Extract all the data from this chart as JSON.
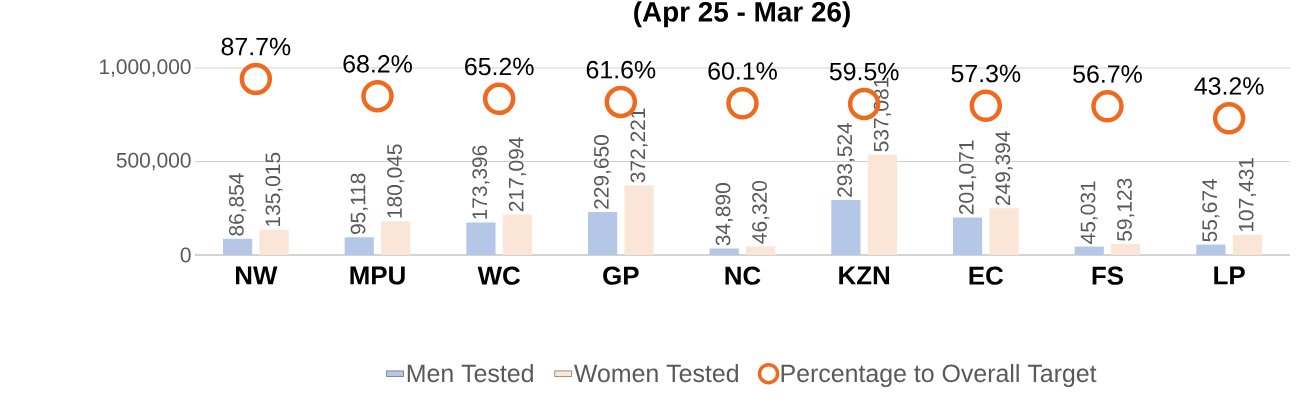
{
  "chart_data": {
    "type": "bar",
    "title": "(Apr 25 - Mar 26)",
    "categories": [
      "NW",
      "MPU",
      "WC",
      "GP",
      "NC",
      "KZN",
      "EC",
      "FS",
      "LP"
    ],
    "series": [
      {
        "name": "Men Tested",
        "color": "#b4c7e7",
        "values": [
          86854,
          95118,
          173396,
          229650,
          34890,
          293524,
          201071,
          45031,
          55674
        ],
        "value_labels": [
          "86,854",
          "95,118",
          "173,396",
          "229,650",
          "34,890",
          "293,524",
          "201,071",
          "45,031",
          "55,674"
        ]
      },
      {
        "name": "Women Tested",
        "color": "#fbe5d6",
        "values": [
          135015,
          180045,
          217094,
          372221,
          46320,
          537081,
          249394,
          59123,
          107431
        ],
        "value_labels": [
          "135,015",
          "180,045",
          "217,094",
          "372,221",
          "46,320",
          "537,081",
          "249,394",
          "59,123",
          "107,431"
        ]
      },
      {
        "name": "Percentage to Overall Target",
        "type": "scatter",
        "axis": "y2",
        "marker": "circle",
        "color": "#ef6a1f",
        "values": [
          87.7,
          68.2,
          65.2,
          61.6,
          60.1,
          59.5,
          57.3,
          56.7,
          43.2
        ],
        "value_labels": [
          "87.7%",
          "68.2%",
          "65.2%",
          "61.6%",
          "60.1%",
          "59.5%",
          "57.3%",
          "56.7%",
          "43.2%"
        ]
      }
    ],
    "ylim": [
      0,
      1000000
    ],
    "yticks": [
      {
        "value": 0,
        "label": "0"
      },
      {
        "value": 500000,
        "label": "500,000"
      },
      {
        "value": 1000000,
        "label": "1,000,000"
      }
    ],
    "y2lim": [
      -111,
      100
    ],
    "grid": "y",
    "legend": "bottom"
  }
}
